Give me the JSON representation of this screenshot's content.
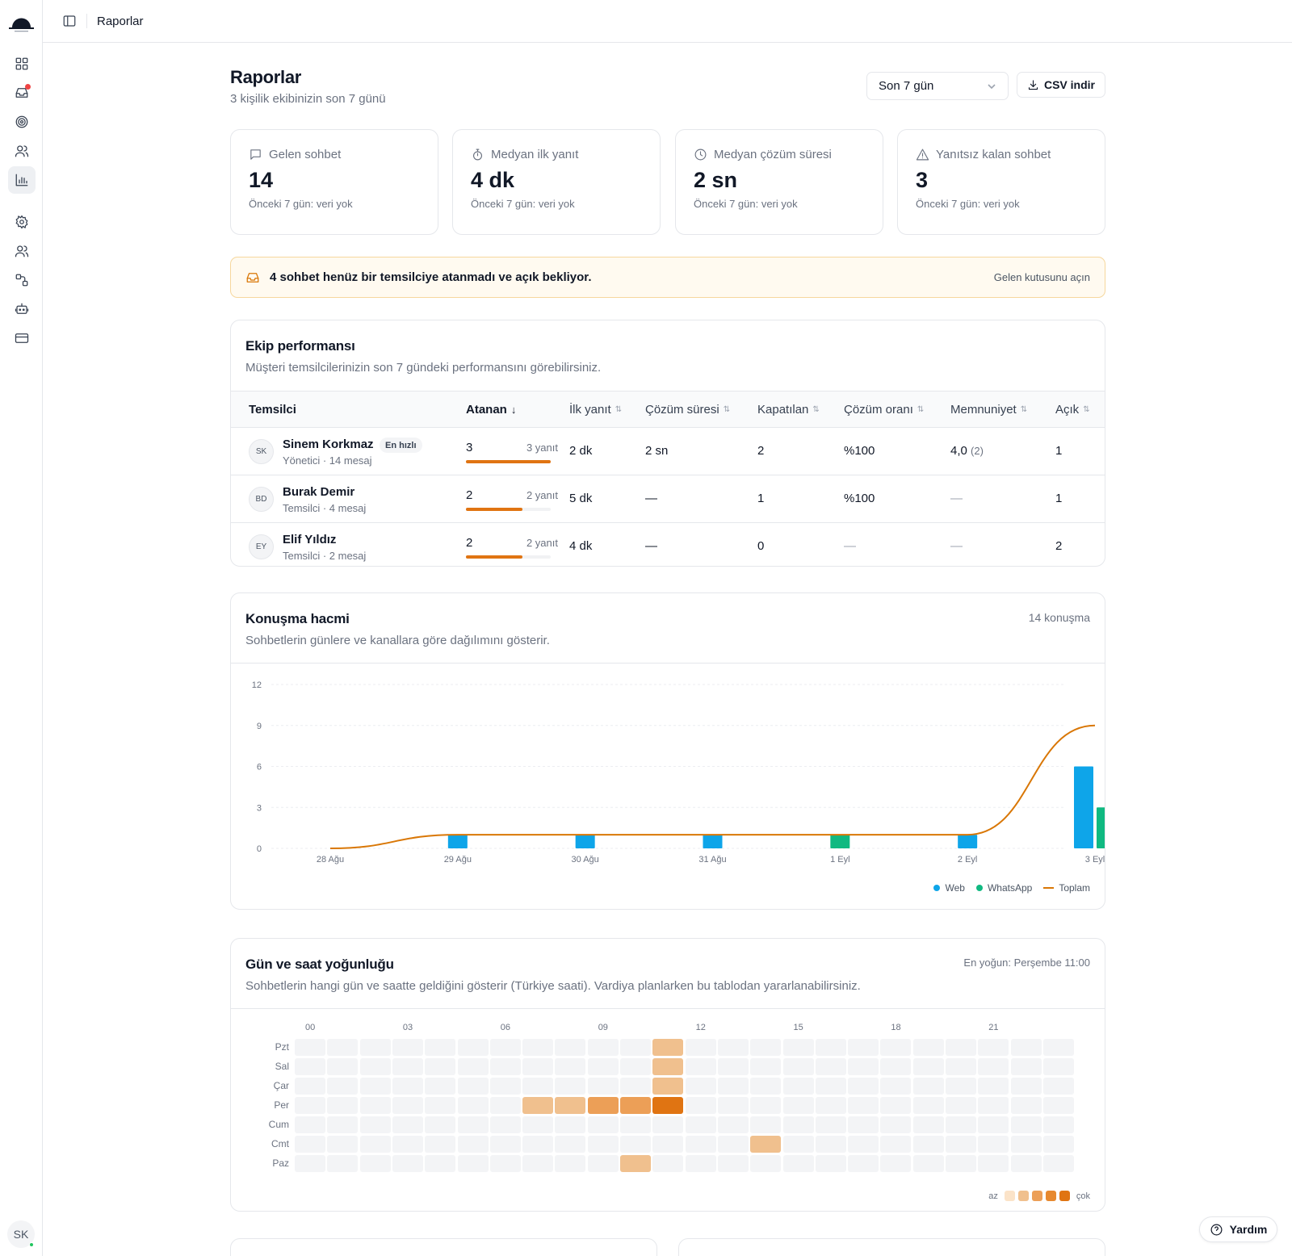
{
  "topbar": {
    "breadcrumb": "Raporlar"
  },
  "user": {
    "initials": "SK"
  },
  "header": {
    "title": "Raporlar",
    "subtitle": "3 kişilik ekibinizin son 7 günü",
    "period": "Son 7 gün",
    "csv_label": "CSV indir"
  },
  "stats": [
    {
      "label": "Gelen sohbet",
      "value": "14",
      "foot": "Önceki 7 gün: veri yok",
      "icon": "chat-icon"
    },
    {
      "label": "Medyan ilk yanıt",
      "value": "4 dk",
      "foot": "Önceki 7 gün: veri yok",
      "icon": "stopwatch-icon"
    },
    {
      "label": "Medyan çözüm süresi",
      "value": "2 sn",
      "foot": "Önceki 7 gün: veri yok",
      "icon": "clock-icon"
    },
    {
      "label": "Yanıtsız kalan sohbet",
      "value": "3",
      "foot": "Önceki 7 gün: veri yok",
      "icon": "warning-icon"
    }
  ],
  "alert": {
    "text": "4 sohbet henüz bir temsilciye atanmadı ve açık bekliyor.",
    "link": "Gelen kutusunu açın"
  },
  "team": {
    "title": "Ekip performansı",
    "subtitle": "Müşteri temsilcilerinizin son 7 gündeki performansını görebilirsiniz.",
    "columns": [
      "Temsilci",
      "Atanan",
      "İlk yanıt",
      "Çözüm süresi",
      "Kapatılan",
      "Çözüm oranı",
      "Memnuniyet",
      "Açık"
    ],
    "rows": [
      {
        "initials": "SK",
        "name": "Sinem Korkmaz",
        "badge": "En hızlı",
        "role": "Yönetici · 14 mesaj",
        "assigned": "3",
        "answered": "3 yanıt",
        "assigned_fraction": 1.0,
        "first_response": "2 dk",
        "resolution": "2 sn",
        "closed": "2",
        "rate": "%100",
        "satisfaction": "4,0",
        "satisfaction_count": "(2)",
        "open": "1"
      },
      {
        "initials": "BD",
        "name": "Burak Demir",
        "badge": "",
        "role": "Temsilci · 4 mesaj",
        "assigned": "2",
        "answered": "2 yanıt",
        "assigned_fraction": 0.667,
        "first_response": "5 dk",
        "resolution": "—",
        "closed": "1",
        "rate": "%100",
        "satisfaction": "—",
        "satisfaction_count": "",
        "open": "1"
      },
      {
        "initials": "EY",
        "name": "Elif Yıldız",
        "badge": "",
        "role": "Temsilci · 2 mesaj",
        "assigned": "2",
        "answered": "2 yanıt",
        "assigned_fraction": 0.667,
        "first_response": "4 dk",
        "resolution": "—",
        "closed": "0",
        "rate": "—",
        "satisfaction": "—",
        "satisfaction_count": "",
        "open": "2"
      }
    ]
  },
  "volume": {
    "title": "Konuşma hacmi",
    "subtitle": "Sohbetlerin günlere ve kanallara göre dağılımını gösterir.",
    "total": "14 konuşma"
  },
  "chart_data": {
    "type": "bar",
    "categories": [
      "28 Ağu",
      "29 Ağu",
      "30 Ağu",
      "31 Ağu",
      "1 Eyl",
      "2 Eyl",
      "3 Eyl"
    ],
    "series": [
      {
        "name": "Web",
        "type": "bar",
        "color": "#0ea5e9",
        "values": [
          0,
          1,
          1,
          1,
          0,
          1,
          6
        ]
      },
      {
        "name": "WhatsApp",
        "type": "bar",
        "color": "#10b981",
        "values": [
          0,
          0,
          0,
          0,
          1,
          0,
          3
        ]
      },
      {
        "name": "Toplam",
        "type": "line",
        "color": "#d97706",
        "values": [
          0,
          1,
          1,
          1,
          1,
          1,
          9
        ]
      }
    ],
    "yticks": [
      0,
      3,
      6,
      9,
      12
    ],
    "ylim": [
      0,
      12
    ],
    "grid": true,
    "legend": "bottom-right"
  },
  "heatmap": {
    "title": "Gün ve saat yoğunluğu",
    "subtitle": "Sohbetlerin hangi gün ve saatte geldiğini gösterir (Türkiye saati). Vardiya planlarken bu tablodan yararlanabilirsiniz.",
    "peak": "En yoğun: Perşembe 11:00",
    "days": [
      "Pzt",
      "Sal",
      "Çar",
      "Per",
      "Cum",
      "Cmt",
      "Paz"
    ],
    "hour_labels": [
      "00",
      "03",
      "06",
      "09",
      "12",
      "15",
      "18",
      "21"
    ],
    "cells": [
      {
        "day": 0,
        "hour": 11,
        "level": 2
      },
      {
        "day": 1,
        "hour": 11,
        "level": 2
      },
      {
        "day": 2,
        "hour": 11,
        "level": 2
      },
      {
        "day": 3,
        "hour": 7,
        "level": 2
      },
      {
        "day": 3,
        "hour": 8,
        "level": 2
      },
      {
        "day": 3,
        "hour": 9,
        "level": 3
      },
      {
        "day": 3,
        "hour": 10,
        "level": 3
      },
      {
        "day": 3,
        "hour": 11,
        "level": 5
      },
      {
        "day": 5,
        "hour": 14,
        "level": 2
      },
      {
        "day": 6,
        "hour": 10,
        "level": 2
      }
    ],
    "legend_low": "az",
    "legend_high": "çok",
    "colors": [
      "#f3f4f6",
      "#fbe3c8",
      "#f0c08e",
      "#ec9f57",
      "#e7892f",
      "#e07412"
    ]
  },
  "help": {
    "label": "Yardım"
  }
}
